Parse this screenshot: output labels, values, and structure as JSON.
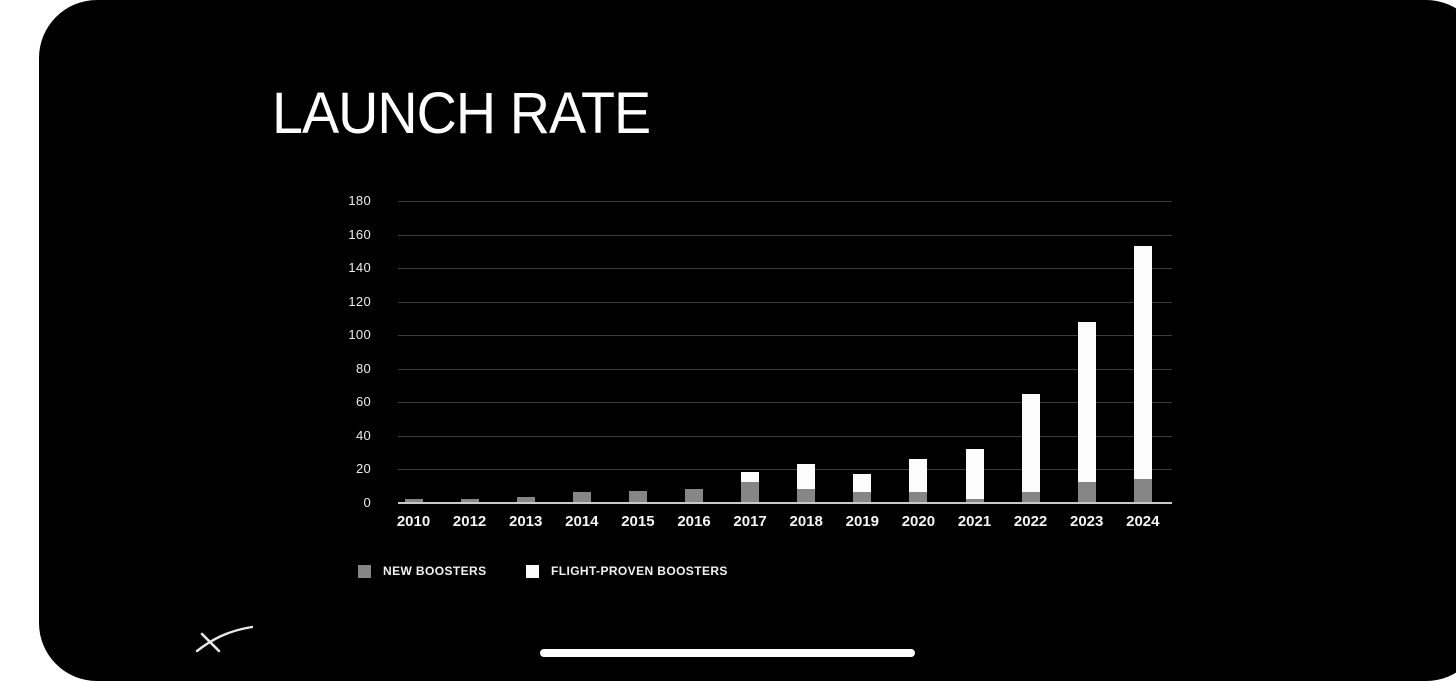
{
  "slide": {
    "title": "LAUNCH RATE",
    "colors": {
      "page_background": "#ffffff",
      "slide_background": "#000000",
      "bar_new": "#868686",
      "bar_flight_proven": "#fcfcfc",
      "gridline": "#3d3d3d",
      "axis_line": "#c9c9c9",
      "text": "#f5f5f5"
    }
  },
  "chart_data": {
    "type": "bar",
    "stacked": true,
    "title": "LAUNCH RATE",
    "categories": [
      "2010",
      "2012",
      "2013",
      "2014",
      "2015",
      "2016",
      "2017",
      "2018",
      "2019",
      "2020",
      "2021",
      "2022",
      "2023",
      "2024"
    ],
    "series": [
      {
        "name": "NEW BOOSTERS",
        "color": "#868686",
        "values": [
          2,
          2,
          3,
          6,
          7,
          8,
          12,
          8,
          6,
          6,
          2,
          6,
          12,
          14
        ]
      },
      {
        "name": "FLIGHT-PROVEN BOOSTERS",
        "color": "#fcfcfc",
        "values": [
          0,
          0,
          0,
          0,
          0,
          0,
          6,
          15,
          11,
          20,
          30,
          59,
          96,
          139
        ]
      }
    ],
    "totals": [
      2,
      2,
      3,
      6,
      7,
      8,
      18,
      23,
      17,
      26,
      32,
      65,
      108,
      153
    ],
    "xlabel": "",
    "ylabel": "",
    "ylim": [
      0,
      180
    ],
    "yticks": [
      0,
      20,
      40,
      60,
      80,
      100,
      120,
      140,
      160,
      180
    ],
    "grid": "horizontal",
    "legend_position": "bottom-left"
  },
  "footer": {
    "logo": "spacex-x-logo",
    "home_indicator": true
  }
}
